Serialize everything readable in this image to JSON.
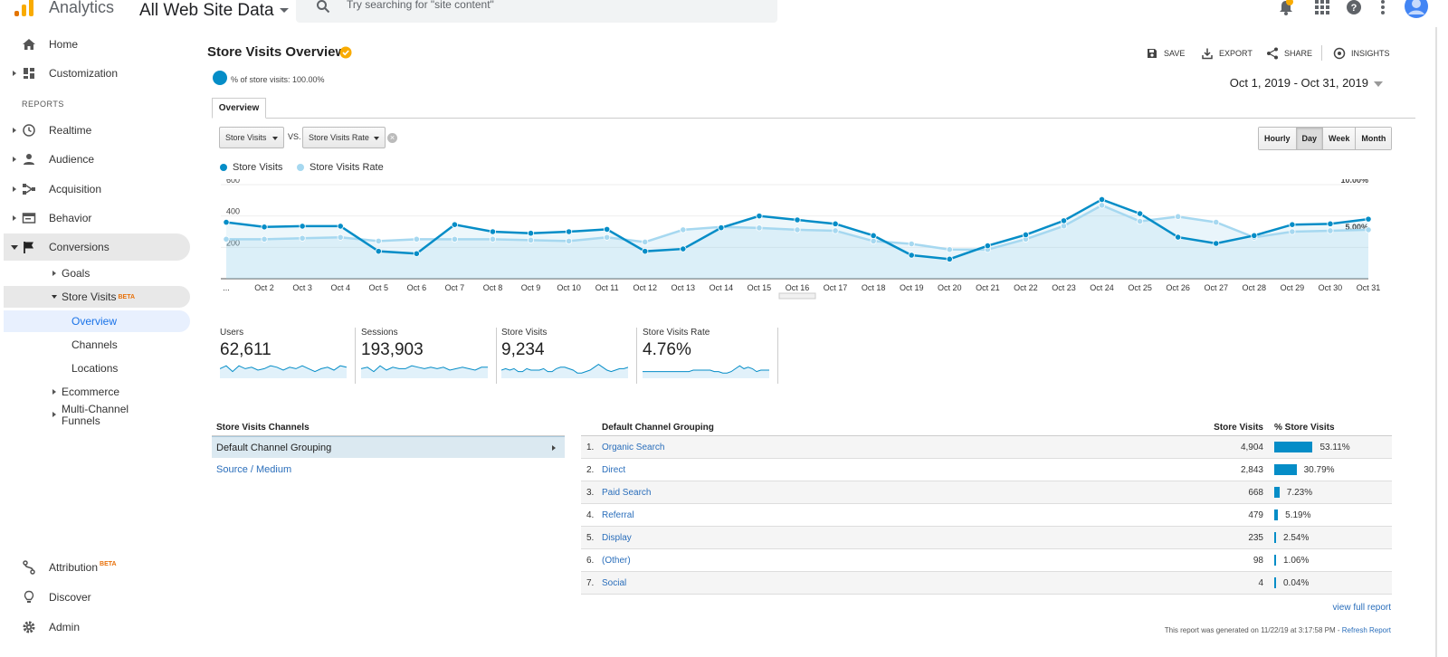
{
  "header": {
    "app_name": "Analytics",
    "property": "All Web Site Data",
    "search_placeholder": "Try searching for \"site content\"",
    "icons": [
      "notifications-icon",
      "apps-icon",
      "help-icon",
      "more-vert-icon",
      "account-icon"
    ],
    "notification_color": "#f9ab00"
  },
  "sidebar": {
    "home": "Home",
    "customization": "Customization",
    "reports_label": "REPORTS",
    "realtime": "Realtime",
    "audience": "Audience",
    "acquisition": "Acquisition",
    "behavior": "Behavior",
    "conversions": "Conversions",
    "goals": "Goals",
    "store_visits": "Store Visits",
    "beta": "BETA",
    "overview": "Overview",
    "channels": "Channels",
    "locations": "Locations",
    "ecommerce": "Ecommerce",
    "mcf_line1": "Multi-Channel",
    "mcf_line2": "Funnels",
    "attribution": "Attribution",
    "discover": "Discover",
    "admin": "Admin"
  },
  "report": {
    "title": "Store Visits Overview",
    "actions": {
      "save": "SAVE",
      "export": "EXPORT",
      "share": "SHARE",
      "insights": "INSIGHTS"
    },
    "segment": "% of store visits: 100.00%",
    "date_range": "Oct 1, 2019 - Oct 31, 2019",
    "tab": "Overview",
    "metric_primary": "Store Visits",
    "vs": "VS.",
    "metric_compare": "Store Visits Rate",
    "granularity": [
      "Hourly",
      "Day",
      "Week",
      "Month"
    ],
    "granularity_active": "Day"
  },
  "chart_data": {
    "type": "line",
    "x": [
      "...",
      "Oct 2",
      "Oct 3",
      "Oct 4",
      "Oct 5",
      "Oct 6",
      "Oct 7",
      "Oct 8",
      "Oct 9",
      "Oct 10",
      "Oct 11",
      "Oct 12",
      "Oct 13",
      "Oct 14",
      "Oct 15",
      "Oct 16",
      "Oct 17",
      "Oct 18",
      "Oct 19",
      "Oct 20",
      "Oct 21",
      "Oct 22",
      "Oct 23",
      "Oct 24",
      "Oct 25",
      "Oct 26",
      "Oct 27",
      "Oct 28",
      "Oct 29",
      "Oct 30",
      "Oct 31"
    ],
    "series": [
      {
        "name": "Store Visits",
        "axis": "left",
        "color": "#058dc7",
        "values": [
          360,
          330,
          335,
          335,
          175,
          160,
          345,
          300,
          290,
          300,
          315,
          175,
          190,
          325,
          400,
          375,
          350,
          275,
          150,
          125,
          210,
          280,
          370,
          505,
          415,
          265,
          225,
          275,
          345,
          350,
          380
        ]
      },
      {
        "name": "Store Visits Rate",
        "axis": "right",
        "color": "#a6d8f0",
        "values": [
          4.2,
          4.2,
          4.3,
          4.4,
          4.0,
          4.2,
          4.2,
          4.2,
          4.1,
          4.0,
          4.4,
          3.9,
          5.2,
          5.5,
          5.4,
          5.2,
          5.1,
          4.0,
          3.7,
          3.1,
          3.1,
          4.2,
          5.6,
          7.8,
          6.1,
          6.6,
          6.0,
          4.4,
          5.0,
          5.1,
          5.2
        ]
      }
    ],
    "y_left": {
      "range": [
        0,
        600
      ],
      "ticks": [
        "600",
        "400",
        "200"
      ]
    },
    "y_right": {
      "range": [
        0,
        10
      ],
      "ticks": [
        "10.00%",
        "5.00%"
      ]
    },
    "legend": "top-left",
    "grid": true
  },
  "scorecards": [
    {
      "name": "Users",
      "value": "62,611",
      "spark": [
        6,
        8,
        4,
        8,
        6,
        7,
        5,
        6,
        8,
        7,
        5,
        7,
        6,
        8,
        6,
        4,
        6,
        7,
        5,
        8,
        7
      ]
    },
    {
      "name": "Sessions",
      "value": "193,903",
      "spark": [
        6,
        7,
        4,
        8,
        5,
        7,
        6,
        6,
        8,
        7,
        6,
        7,
        6,
        7,
        5,
        6,
        7,
        6,
        5,
        7,
        7
      ]
    },
    {
      "name": "Store Visits",
      "value": "9,234",
      "spark": [
        5,
        6,
        5,
        6,
        4,
        4,
        6,
        5,
        5,
        5,
        6,
        4,
        4,
        6,
        7,
        7,
        6,
        5,
        3,
        3,
        4,
        5,
        7,
        9,
        7,
        5,
        4,
        5,
        6,
        6,
        7
      ]
    },
    {
      "name": "Store Visits Rate",
      "value": "4.76%",
      "spark": [
        4,
        4,
        4,
        4,
        4,
        4,
        4,
        4,
        4,
        4,
        4,
        4,
        5,
        5,
        5,
        5,
        5,
        4,
        4,
        3,
        3,
        4,
        6,
        8,
        6,
        7,
        6,
        4,
        5,
        5,
        5
      ]
    }
  ],
  "channels": {
    "title": "Store Visits Channels",
    "items": [
      "Default Channel Grouping",
      "Source / Medium"
    ]
  },
  "table": {
    "headers": {
      "dimension": "Default Channel Grouping",
      "visits": "Store Visits",
      "pct": "% Store Visits"
    },
    "rows": [
      {
        "rank": "1.",
        "name": "Organic Search",
        "visits": "4,904",
        "pct": "53.11%",
        "share": 53.11
      },
      {
        "rank": "2.",
        "name": "Direct",
        "visits": "2,843",
        "pct": "30.79%",
        "share": 30.79
      },
      {
        "rank": "3.",
        "name": "Paid Search",
        "visits": "668",
        "pct": "7.23%",
        "share": 7.23
      },
      {
        "rank": "4.",
        "name": "Referral",
        "visits": "479",
        "pct": "5.19%",
        "share": 5.19
      },
      {
        "rank": "5.",
        "name": "Display",
        "visits": "235",
        "pct": "2.54%",
        "share": 2.54
      },
      {
        "rank": "6.",
        "name": "(Other)",
        "visits": "98",
        "pct": "1.06%",
        "share": 1.06
      },
      {
        "rank": "7.",
        "name": "Social",
        "visits": "4",
        "pct": "0.04%",
        "share": 0.04
      }
    ],
    "view_full": "view full report",
    "generated": "This report was generated on 11/22/19 at 3:17:58 PM - ",
    "refresh": "Refresh Report"
  }
}
